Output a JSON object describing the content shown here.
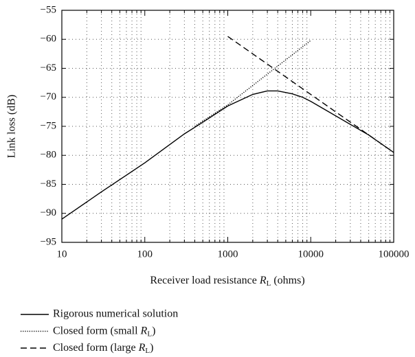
{
  "chart_data": {
    "type": "line",
    "xlabel": "Receiver load resistance RL (ohms)",
    "ylabel": "Link loss (dB)",
    "xscale": "log",
    "xlim": [
      10,
      100000
    ],
    "xticks": [
      10,
      100,
      1000,
      10000,
      100000
    ],
    "ylim": [
      -95,
      -55
    ],
    "yticks": [
      {
        "value": -95,
        "label": "−95"
      },
      {
        "value": -90,
        "label": "−90"
      },
      {
        "value": -85,
        "label": "−85"
      },
      {
        "value": -80,
        "label": "−80"
      },
      {
        "value": -75,
        "label": "−75"
      },
      {
        "value": -70,
        "label": "−70"
      },
      {
        "value": -65,
        "label": "−65"
      },
      {
        "value": -60,
        "label": "−60"
      },
      {
        "value": -55,
        "label": "−55"
      }
    ],
    "grid": true,
    "legend": "bottom",
    "series": [
      {
        "name": "Rigorous numerical solution",
        "color": "#000000",
        "dash": "solid",
        "x": [
          10,
          30,
          100,
          300,
          500,
          1000,
          2000,
          3000,
          4000,
          6000,
          8000,
          10000,
          20000,
          50000,
          100000
        ],
        "values": [
          -91,
          -86.3,
          -81.3,
          -76.3,
          -74.3,
          -71.5,
          -69.5,
          -68.9,
          -68.9,
          -69.4,
          -70,
          -70.7,
          -73.2,
          -76.5,
          -79.5
        ]
      },
      {
        "name": "Closed form (small RL)",
        "color": "#000000",
        "dash": "dotted",
        "x": [
          400,
          1000,
          10000
        ],
        "values": [
          -75,
          -71.3,
          -60.2
        ]
      },
      {
        "name": "Closed form (large RL)",
        "color": "#000000",
        "dash": "dashed",
        "x": [
          1000,
          100000
        ],
        "values": [
          -59.5,
          -79.5
        ]
      }
    ]
  }
}
